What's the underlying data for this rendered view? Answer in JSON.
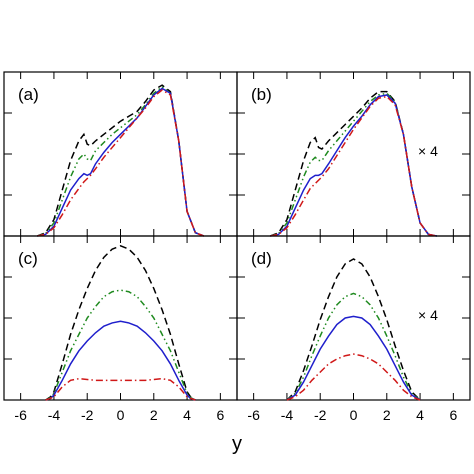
{
  "chart_data": {
    "type": "line",
    "xlabel": "y",
    "xlim": [
      -7,
      7
    ],
    "xticks": [
      -6,
      -4,
      -2,
      0,
      2,
      4,
      6
    ],
    "grid": false,
    "legend": "none",
    "series_styles": [
      {
        "color": "#000000",
        "dash": "dashed"
      },
      {
        "color": "#1f8a1f",
        "dash": "dash-dot-dot"
      },
      {
        "color": "#1f1fcc",
        "dash": "solid"
      },
      {
        "color": "#d01818",
        "dash": "dash-dot"
      }
    ],
    "panels": [
      {
        "label": "(a)",
        "annotation": "",
        "ylim": [
          0,
          1.0
        ],
        "x": [
          -5.0,
          -4.5,
          -4.0,
          -3.5,
          -3.0,
          -2.5,
          -2.2,
          -2.0,
          -1.8,
          -1.5,
          -1.0,
          -0.5,
          0.0,
          0.5,
          1.0,
          1.5,
          2.0,
          2.5,
          3.0,
          3.5,
          4.0,
          4.5,
          5.0
        ],
        "series": [
          {
            "values": [
              0.0,
              0.02,
              0.1,
              0.28,
              0.46,
              0.58,
              0.62,
              0.56,
              0.55,
              0.58,
              0.62,
              0.66,
              0.7,
              0.73,
              0.76,
              0.82,
              0.89,
              0.92,
              0.88,
              0.58,
              0.15,
              0.02,
              0.0
            ]
          },
          {
            "values": [
              0.0,
              0.015,
              0.08,
              0.22,
              0.36,
              0.47,
              0.5,
              0.47,
              0.46,
              0.52,
              0.57,
              0.62,
              0.66,
              0.7,
              0.74,
              0.8,
              0.87,
              0.91,
              0.87,
              0.58,
              0.15,
              0.02,
              0.0
            ]
          },
          {
            "values": [
              0.0,
              0.01,
              0.06,
              0.17,
              0.28,
              0.35,
              0.38,
              0.37,
              0.38,
              0.44,
              0.51,
              0.57,
              0.62,
              0.67,
              0.72,
              0.79,
              0.86,
              0.9,
              0.87,
              0.58,
              0.15,
              0.02,
              0.0
            ]
          },
          {
            "values": [
              0.0,
              0.01,
              0.05,
              0.13,
              0.22,
              0.29,
              0.33,
              0.35,
              0.37,
              0.41,
              0.48,
              0.54,
              0.6,
              0.66,
              0.72,
              0.78,
              0.85,
              0.89,
              0.86,
              0.58,
              0.15,
              0.02,
              0.0
            ]
          }
        ]
      },
      {
        "label": "(b)",
        "annotation": "× 4",
        "ylim": [
          0,
          1.0
        ],
        "x": [
          -5.0,
          -4.5,
          -4.0,
          -3.5,
          -3.0,
          -2.6,
          -2.3,
          -2.1,
          -1.9,
          -1.5,
          -1.0,
          -0.5,
          0.0,
          0.5,
          1.0,
          1.5,
          2.0,
          2.5,
          3.0,
          3.5,
          4.0,
          4.5,
          5.0
        ],
        "series": [
          {
            "values": [
              0.0,
              0.02,
              0.1,
              0.28,
              0.46,
              0.57,
              0.6,
              0.54,
              0.53,
              0.58,
              0.63,
              0.68,
              0.73,
              0.78,
              0.84,
              0.88,
              0.88,
              0.82,
              0.62,
              0.3,
              0.08,
              0.01,
              0.0
            ]
          },
          {
            "values": [
              0.0,
              0.015,
              0.08,
              0.22,
              0.36,
              0.45,
              0.48,
              0.46,
              0.46,
              0.52,
              0.58,
              0.64,
              0.7,
              0.76,
              0.82,
              0.86,
              0.87,
              0.82,
              0.62,
              0.3,
              0.08,
              0.01,
              0.0
            ]
          },
          {
            "values": [
              0.0,
              0.01,
              0.06,
              0.17,
              0.28,
              0.35,
              0.37,
              0.37,
              0.38,
              0.44,
              0.52,
              0.6,
              0.67,
              0.73,
              0.8,
              0.85,
              0.86,
              0.81,
              0.62,
              0.3,
              0.08,
              0.01,
              0.0
            ]
          },
          {
            "values": [
              0.0,
              0.01,
              0.05,
              0.13,
              0.22,
              0.29,
              0.32,
              0.34,
              0.36,
              0.41,
              0.49,
              0.57,
              0.65,
              0.72,
              0.79,
              0.84,
              0.85,
              0.8,
              0.62,
              0.3,
              0.08,
              0.01,
              0.0
            ]
          }
        ]
      },
      {
        "label": "(c)",
        "annotation": "",
        "ylim": [
          0,
          1.0
        ],
        "x": [
          -4.5,
          -4.2,
          -4.0,
          -3.5,
          -3.0,
          -2.5,
          -2.0,
          -1.5,
          -1.0,
          -0.5,
          0.0,
          0.5,
          1.0,
          1.5,
          2.0,
          2.5,
          3.0,
          3.5,
          4.0,
          4.2,
          4.5
        ],
        "series": [
          {
            "values": [
              0.0,
              0.02,
              0.05,
              0.22,
              0.4,
              0.55,
              0.68,
              0.79,
              0.87,
              0.92,
              0.94,
              0.92,
              0.87,
              0.79,
              0.68,
              0.55,
              0.4,
              0.22,
              0.05,
              0.02,
              0.0
            ]
          },
          {
            "values": [
              0.0,
              0.015,
              0.04,
              0.17,
              0.3,
              0.4,
              0.5,
              0.57,
              0.63,
              0.66,
              0.67,
              0.66,
              0.63,
              0.57,
              0.5,
              0.4,
              0.3,
              0.17,
              0.04,
              0.015,
              0.0
            ]
          },
          {
            "values": [
              0.0,
              0.01,
              0.03,
              0.12,
              0.22,
              0.3,
              0.36,
              0.41,
              0.45,
              0.47,
              0.48,
              0.47,
              0.45,
              0.41,
              0.36,
              0.3,
              0.22,
              0.12,
              0.03,
              0.01,
              0.0
            ]
          },
          {
            "values": [
              0.0,
              0.01,
              0.02,
              0.08,
              0.12,
              0.13,
              0.125,
              0.12,
              0.12,
              0.12,
              0.12,
              0.12,
              0.12,
              0.12,
              0.125,
              0.13,
              0.12,
              0.08,
              0.02,
              0.01,
              0.0
            ]
          }
        ]
      },
      {
        "label": "(d)",
        "annotation": "× 4",
        "ylim": [
          0,
          1.0
        ],
        "x": [
          -4.0,
          -3.5,
          -3.0,
          -2.5,
          -2.0,
          -1.5,
          -1.0,
          -0.5,
          0.0,
          0.5,
          1.0,
          1.5,
          2.0,
          2.5,
          3.0,
          3.5,
          4.0
        ],
        "series": [
          {
            "values": [
              0.0,
              0.05,
              0.18,
              0.33,
              0.49,
              0.63,
              0.75,
              0.83,
              0.86,
              0.83,
              0.75,
              0.63,
              0.49,
              0.33,
              0.18,
              0.05,
              0.0
            ]
          },
          {
            "values": [
              0.0,
              0.04,
              0.14,
              0.27,
              0.39,
              0.5,
              0.58,
              0.63,
              0.65,
              0.63,
              0.58,
              0.5,
              0.39,
              0.27,
              0.14,
              0.04,
              0.0
            ]
          },
          {
            "values": [
              0.0,
              0.03,
              0.11,
              0.21,
              0.31,
              0.39,
              0.46,
              0.5,
              0.51,
              0.5,
              0.46,
              0.39,
              0.31,
              0.21,
              0.11,
              0.03,
              0.0
            ]
          },
          {
            "values": [
              0.0,
              0.02,
              0.06,
              0.12,
              0.17,
              0.22,
              0.25,
              0.27,
              0.28,
              0.27,
              0.25,
              0.22,
              0.17,
              0.12,
              0.06,
              0.02,
              0.0
            ]
          }
        ]
      }
    ]
  }
}
